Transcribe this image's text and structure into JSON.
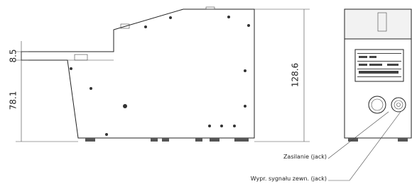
{
  "dimensions": {
    "base_height": "8.5",
    "lower_height": "78.1",
    "total_height": "128.6"
  },
  "callouts": {
    "power": "Zasilanie (jack)",
    "signal": "Wypr. sygnału zewn. (jack)"
  }
}
